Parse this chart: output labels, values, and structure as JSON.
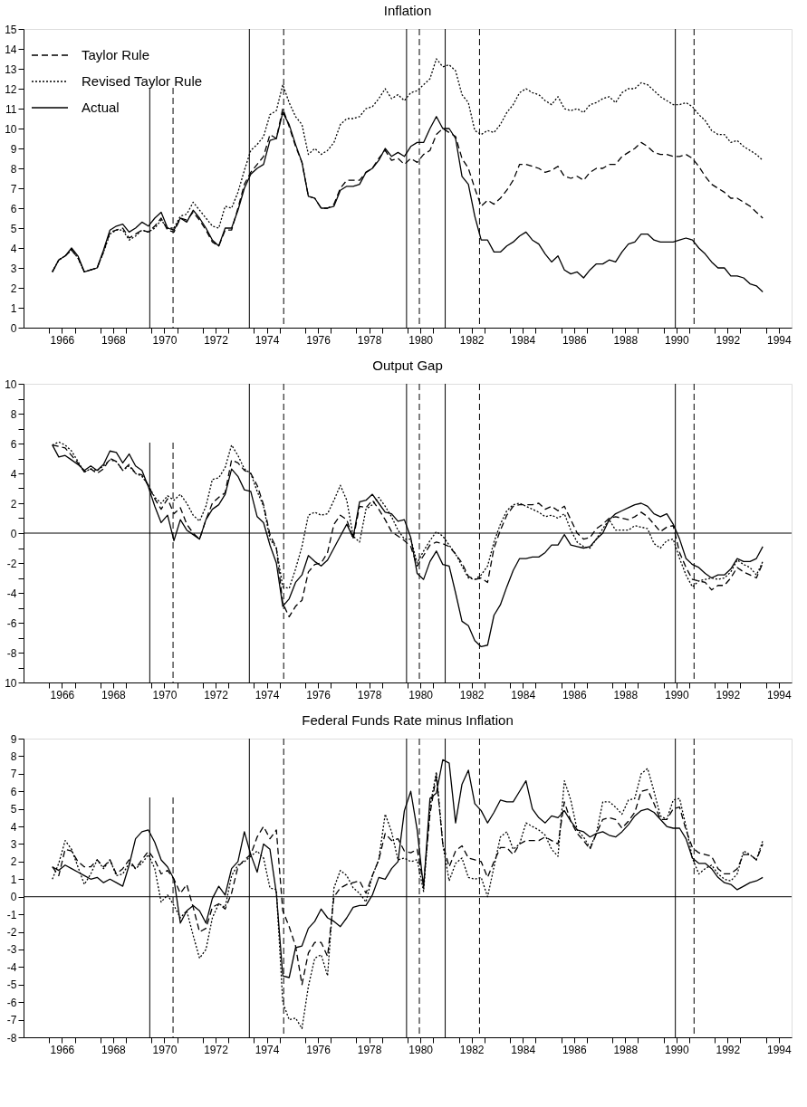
{
  "chart_data": [
    {
      "type": "line",
      "title": "Inflation",
      "legend": "top left",
      "xlim": [
        1965,
        1995
      ],
      "xticks": [
        {
          "value": 1966,
          "label": null
        },
        {
          "value": 1967,
          "label": null
        },
        {
          "value": 1968,
          "label": null
        },
        {
          "value": 1969,
          "label": null
        },
        {
          "value": 1970,
          "label": null
        },
        {
          "value": 1971,
          "label": null
        },
        {
          "value": 1972,
          "label": null
        },
        {
          "value": 1973,
          "label": null
        },
        {
          "value": 1974,
          "label": null
        },
        {
          "value": 1975,
          "label": null
        },
        {
          "value": 1976,
          "label": null
        },
        {
          "value": 1977,
          "label": null
        },
        {
          "value": 1978,
          "label": null
        },
        {
          "value": 1979,
          "label": null
        },
        {
          "value": 1980,
          "label": null
        },
        {
          "value": 1981,
          "label": null
        },
        {
          "value": 1982,
          "label": null
        },
        {
          "value": 1983,
          "label": null
        },
        {
          "value": 1984,
          "label": null
        },
        {
          "value": 1985,
          "label": null
        },
        {
          "value": 1986,
          "label": null
        },
        {
          "value": 1987,
          "label": null
        },
        {
          "value": 1988,
          "label": null
        },
        {
          "value": 1989,
          "label": null
        },
        {
          "value": 1990,
          "label": null
        },
        {
          "value": 1991,
          "label": null
        },
        {
          "value": 1992,
          "label": null
        },
        {
          "value": 1993,
          "label": null
        },
        {
          "value": 1994,
          "label": null
        },
        {
          "value": 1966.5,
          "label": "1966"
        },
        {
          "value": 1968.5,
          "label": "1968"
        },
        {
          "value": 1970.5,
          "label": "1970"
        },
        {
          "value": 1972.5,
          "label": "1972"
        },
        {
          "value": 1974.5,
          "label": "1974"
        },
        {
          "value": 1976.5,
          "label": "1976"
        },
        {
          "value": 1978.5,
          "label": "1978"
        },
        {
          "value": 1980.5,
          "label": "1980"
        },
        {
          "value": 1982.5,
          "label": "1982"
        },
        {
          "value": 1984.5,
          "label": "1984"
        },
        {
          "value": 1986.5,
          "label": "1986"
        },
        {
          "value": 1988.5,
          "label": "1988"
        },
        {
          "value": 1990.5,
          "label": "1990"
        },
        {
          "value": 1992.5,
          "label": "1992"
        },
        {
          "value": 1994.5,
          "label": "1994"
        }
      ],
      "ylim": [
        0,
        15
      ],
      "yticks": [
        0,
        1,
        2,
        3,
        4,
        5,
        6,
        7,
        8,
        9,
        10,
        11,
        12,
        13,
        14,
        15
      ],
      "x": [
        1966.125,
        1966.375,
        1966.625,
        1966.875,
        1967.125,
        1967.375,
        1967.625,
        1967.875,
        1968.125,
        1968.375,
        1968.625,
        1968.875,
        1969.125,
        1969.375,
        1969.625,
        1969.875,
        1970.125,
        1970.375,
        1970.625,
        1970.875,
        1971.125,
        1971.375,
        1971.625,
        1971.875,
        1972.125,
        1972.375,
        1972.625,
        1972.875,
        1973.125,
        1973.375,
        1973.625,
        1973.875,
        1974.125,
        1974.375,
        1974.625,
        1974.875,
        1975.125,
        1975.375,
        1975.625,
        1975.875,
        1976.125,
        1976.375,
        1976.625,
        1976.875,
        1977.125,
        1977.375,
        1977.625,
        1977.875,
        1978.125,
        1978.375,
        1978.625,
        1978.875,
        1979.125,
        1979.375,
        1979.625,
        1979.875,
        1980.125,
        1980.375,
        1980.625,
        1980.875,
        1981.125,
        1981.375,
        1981.625,
        1981.875,
        1982.125,
        1982.375,
        1982.625,
        1982.875,
        1983.125,
        1983.375,
        1983.625,
        1983.875,
        1984.125,
        1984.375,
        1984.625,
        1984.875,
        1985.125,
        1985.375,
        1985.625,
        1985.875,
        1986.125,
        1986.375,
        1986.625,
        1986.875,
        1987.125,
        1987.375,
        1987.625,
        1987.875,
        1988.125,
        1988.375,
        1988.625,
        1988.875,
        1989.125,
        1989.375,
        1989.625,
        1989.875,
        1990.125,
        1990.375,
        1990.625,
        1990.875,
        1991.125,
        1991.375,
        1991.625,
        1991.875,
        1992.125,
        1992.375,
        1992.625,
        1992.875,
        1993.125,
        1993.375,
        1993.625,
        1993.875
      ],
      "series": [
        {
          "name": "Taylor Rule",
          "color": "#000000",
          "line_style": "dashed",
          "values": [
            2.8,
            3.4,
            3.6,
            3.9,
            3.5,
            2.8,
            2.9,
            3.0,
            3.8,
            4.8,
            4.9,
            5.0,
            4.5,
            4.7,
            4.9,
            4.8,
            5.1,
            5.5,
            4.9,
            4.8,
            5.5,
            5.4,
            5.8,
            5.4,
            4.9,
            4.3,
            4.1,
            4.9,
            4.9,
            6.0,
            7.2,
            7.8,
            8.2,
            8.6,
            9.7,
            9.5,
            11.0,
            10.1,
            9.1,
            8.3,
            6.6,
            6.5,
            6.0,
            6.0,
            6.2,
            7.0,
            7.4,
            7.4,
            7.4,
            7.8,
            8.0,
            8.5,
            8.9,
            8.4,
            8.5,
            8.2,
            8.5,
            8.3,
            8.7,
            8.9,
            9.7,
            10.0,
            9.8,
            9.6,
            8.5,
            8.0,
            7.0,
            6.1,
            6.4,
            6.2,
            6.5,
            6.9,
            7.4,
            8.2,
            8.2,
            8.1,
            8.0,
            7.8,
            7.9,
            8.1,
            7.6,
            7.5,
            7.6,
            7.4,
            7.8,
            8.0,
            8.0,
            8.2,
            8.2,
            8.6,
            8.8,
            9.0,
            9.3,
            9.1,
            8.8,
            8.7,
            8.7,
            8.6,
            8.6,
            8.7,
            8.5,
            8.1,
            7.6,
            7.2,
            7.0,
            6.8,
            6.5,
            6.5,
            6.3,
            6.1,
            5.8,
            5.5
          ]
        },
        {
          "name": "Revised Taylor Rule",
          "color": "#000000",
          "line_style": "dotted",
          "values": [
            2.8,
            3.4,
            3.6,
            3.9,
            3.5,
            2.8,
            2.9,
            3.0,
            3.8,
            4.7,
            4.9,
            4.9,
            4.4,
            4.6,
            4.9,
            4.8,
            5.0,
            5.4,
            5.0,
            5.0,
            5.6,
            5.7,
            6.3,
            5.9,
            5.5,
            5.1,
            5.0,
            6.1,
            6.0,
            6.8,
            7.9,
            8.9,
            9.2,
            9.6,
            10.7,
            10.9,
            12.2,
            11.3,
            10.6,
            10.2,
            8.7,
            9.0,
            8.7,
            8.9,
            9.3,
            10.2,
            10.5,
            10.5,
            10.6,
            11.0,
            11.1,
            11.5,
            12.0,
            11.5,
            11.7,
            11.4,
            11.8,
            11.9,
            12.2,
            12.5,
            13.5,
            13.1,
            13.2,
            12.9,
            11.7,
            11.3,
            9.9,
            9.7,
            9.9,
            9.8,
            10.2,
            10.8,
            11.2,
            11.8,
            12.0,
            11.8,
            11.7,
            11.4,
            11.2,
            11.6,
            11.0,
            10.9,
            11.0,
            10.8,
            11.2,
            11.3,
            11.5,
            11.6,
            11.3,
            11.8,
            12.0,
            12.0,
            12.3,
            12.2,
            11.9,
            11.6,
            11.4,
            11.2,
            11.2,
            11.3,
            11.1,
            10.7,
            10.4,
            9.9,
            9.7,
            9.7,
            9.3,
            9.4,
            9.1,
            8.9,
            8.7,
            8.4
          ]
        },
        {
          "name": "Actual",
          "color": "#000000",
          "line_style": "solid",
          "values": [
            2.8,
            3.4,
            3.6,
            4.0,
            3.6,
            2.8,
            2.9,
            3.0,
            3.9,
            4.9,
            5.1,
            5.2,
            4.8,
            5.0,
            5.3,
            5.1,
            5.5,
            5.8,
            5.0,
            4.9,
            5.5,
            5.3,
            5.9,
            5.5,
            5.0,
            4.4,
            4.1,
            5.0,
            5.0,
            5.9,
            7.0,
            7.7,
            8.0,
            8.2,
            9.4,
            9.5,
            10.8,
            10.2,
            9.2,
            8.3,
            6.6,
            6.5,
            6.0,
            6.0,
            6.1,
            6.9,
            7.1,
            7.1,
            7.2,
            7.8,
            8.0,
            8.4,
            9.0,
            8.6,
            8.8,
            8.6,
            9.1,
            9.3,
            9.3,
            10.0,
            10.6,
            10.0,
            10.0,
            9.5,
            7.6,
            7.2,
            5.6,
            4.4,
            4.4,
            3.8,
            3.8,
            4.1,
            4.3,
            4.6,
            4.8,
            4.4,
            4.2,
            3.7,
            3.3,
            3.6,
            2.9,
            2.7,
            2.8,
            2.5,
            2.9,
            3.2,
            3.2,
            3.4,
            3.3,
            3.8,
            4.2,
            4.3,
            4.7,
            4.7,
            4.4,
            4.3,
            4.3,
            4.3,
            4.4,
            4.5,
            4.4,
            4.0,
            3.7,
            3.3,
            3.0,
            3.0,
            2.6,
            2.6,
            2.5,
            2.2,
            2.1,
            1.8
          ]
        }
      ],
      "ref_lines": [
        {
          "axis": "x",
          "value": 1969.93,
          "line_style": "solid"
        },
        {
          "axis": "x",
          "value": 1970.84,
          "line_style": "dashed"
        },
        {
          "axis": "x",
          "value": 1973.82,
          "line_style": "solid"
        },
        {
          "axis": "x",
          "value": 1975.16,
          "line_style": "dashed"
        },
        {
          "axis": "x",
          "value": 1979.96,
          "line_style": "solid"
        },
        {
          "axis": "x",
          "value": 1980.46,
          "line_style": "dashed"
        },
        {
          "axis": "x",
          "value": 1981.47,
          "line_style": "solid"
        },
        {
          "axis": "x",
          "value": 1982.81,
          "line_style": "dashed"
        },
        {
          "axis": "x",
          "value": 1990.46,
          "line_style": "solid"
        },
        {
          "axis": "x",
          "value": 1991.19,
          "line_style": "dashed"
        }
      ]
    },
    {
      "type": "line",
      "title": "Output Gap",
      "legend": "top left",
      "xlim": [
        1965,
        1995
      ],
      "xticks": [
        {
          "value": 1966,
          "label": null
        },
        {
          "value": 1967,
          "label": null
        },
        {
          "value": 1968,
          "label": null
        },
        {
          "value": 1969,
          "label": null
        },
        {
          "value": 1970,
          "label": null
        },
        {
          "value": 1971,
          "label": null
        },
        {
          "value": 1972,
          "label": null
        },
        {
          "value": 1973,
          "label": null
        },
        {
          "value": 1974,
          "label": null
        },
        {
          "value": 1975,
          "label": null
        },
        {
          "value": 1976,
          "label": null
        },
        {
          "value": 1977,
          "label": null
        },
        {
          "value": 1978,
          "label": null
        },
        {
          "value": 1979,
          "label": null
        },
        {
          "value": 1980,
          "label": null
        },
        {
          "value": 1981,
          "label": null
        },
        {
          "value": 1982,
          "label": null
        },
        {
          "value": 1983,
          "label": null
        },
        {
          "value": 1984,
          "label": null
        },
        {
          "value": 1985,
          "label": null
        },
        {
          "value": 1986,
          "label": null
        },
        {
          "value": 1987,
          "label": null
        },
        {
          "value": 1988,
          "label": null
        },
        {
          "value": 1989,
          "label": null
        },
        {
          "value": 1990,
          "label": null
        },
        {
          "value": 1991,
          "label": null
        },
        {
          "value": 1992,
          "label": null
        },
        {
          "value": 1993,
          "label": null
        },
        {
          "value": 1994,
          "label": null
        },
        {
          "value": 1966.5,
          "label": "1966"
        },
        {
          "value": 1968.5,
          "label": "1968"
        },
        {
          "value": 1970.5,
          "label": "1970"
        },
        {
          "value": 1972.5,
          "label": "1972"
        },
        {
          "value": 1974.5,
          "label": "1974"
        },
        {
          "value": 1976.5,
          "label": "1976"
        },
        {
          "value": 1978.5,
          "label": "1978"
        },
        {
          "value": 1980.5,
          "label": "1980"
        },
        {
          "value": 1982.5,
          "label": "1982"
        },
        {
          "value": 1984.5,
          "label": "1984"
        },
        {
          "value": 1986.5,
          "label": "1986"
        },
        {
          "value": 1988.5,
          "label": "1988"
        },
        {
          "value": 1990.5,
          "label": "1990"
        },
        {
          "value": 1992.5,
          "label": "1992"
        },
        {
          "value": 1994.5,
          "label": "1994"
        }
      ],
      "ylim": [
        -10,
        10
      ],
      "yticks": [
        {
          "value": -10,
          "label": "10"
        },
        {
          "value": -9,
          "label": null
        },
        -8,
        {
          "value": -7,
          "label": null
        },
        -6,
        {
          "value": -5,
          "label": null
        },
        -4,
        {
          "value": -3,
          "label": null
        },
        -2,
        {
          "value": -1,
          "label": null
        },
        0,
        {
          "value": 1,
          "label": null
        },
        2,
        {
          "value": 3,
          "label": null
        },
        4,
        {
          "value": 5,
          "label": null
        },
        6,
        {
          "value": 7,
          "label": null
        },
        8,
        {
          "value": 9,
          "label": null
        },
        10
      ],
      "x": [
        1966.125,
        1966.375,
        1966.625,
        1966.875,
        1967.125,
        1967.375,
        1967.625,
        1967.875,
        1968.125,
        1968.375,
        1968.625,
        1968.875,
        1969.125,
        1969.375,
        1969.625,
        1969.875,
        1970.125,
        1970.375,
        1970.625,
        1970.875,
        1971.125,
        1971.375,
        1971.625,
        1971.875,
        1972.125,
        1972.375,
        1972.625,
        1972.875,
        1973.125,
        1973.375,
        1973.625,
        1973.875,
        1974.125,
        1974.375,
        1974.625,
        1974.875,
        1975.125,
        1975.375,
        1975.625,
        1975.875,
        1976.125,
        1976.375,
        1976.625,
        1976.875,
        1977.125,
        1977.375,
        1977.625,
        1977.875,
        1978.125,
        1978.375,
        1978.625,
        1978.875,
        1979.125,
        1979.375,
        1979.625,
        1979.875,
        1980.125,
        1980.375,
        1980.625,
        1980.875,
        1981.125,
        1981.375,
        1981.625,
        1981.875,
        1982.125,
        1982.375,
        1982.625,
        1982.875,
        1983.125,
        1983.375,
        1983.625,
        1983.875,
        1984.125,
        1984.375,
        1984.625,
        1984.875,
        1985.125,
        1985.375,
        1985.625,
        1985.875,
        1986.125,
        1986.375,
        1986.625,
        1986.875,
        1987.125,
        1987.375,
        1987.625,
        1987.875,
        1988.125,
        1988.375,
        1988.625,
        1988.875,
        1989.125,
        1989.375,
        1989.625,
        1989.875,
        1990.125,
        1990.375,
        1990.625,
        1990.875,
        1991.125,
        1991.375,
        1991.625,
        1991.875,
        1992.125,
        1992.375,
        1992.625,
        1992.875,
        1993.125,
        1993.375,
        1993.625,
        1993.875
      ],
      "series": [
        {
          "name": "Taylor Rule",
          "color": "#000000",
          "line_style": "dashed",
          "values": [
            5.9,
            5.8,
            5.7,
            5.2,
            4.7,
            4.1,
            4.3,
            4.0,
            4.3,
            5.0,
            4.8,
            4.2,
            4.6,
            4.0,
            3.9,
            3.2,
            2.3,
            1.6,
            2.3,
            1.3,
            1.7,
            0.6,
            0.0,
            -0.4,
            0.9,
            2.0,
            2.4,
            2.7,
            4.9,
            4.7,
            4.2,
            4.0,
            3.2,
            1.9,
            -0.1,
            -1.0,
            -4.7,
            -5.6,
            -4.9,
            -4.5,
            -2.6,
            -2.1,
            -2.0,
            -1.3,
            0.6,
            1.2,
            0.9,
            -0.4,
            1.8,
            1.7,
            2.2,
            1.6,
            0.9,
            0.1,
            -0.2,
            -0.5,
            -0.9,
            -2.2,
            -1.5,
            -0.8,
            -0.6,
            -0.7,
            -0.9,
            -1.4,
            -2.0,
            -2.9,
            -3.1,
            -3.0,
            -3.3,
            -1.0,
            0.2,
            1.2,
            1.8,
            1.9,
            1.9,
            1.9,
            2.0,
            1.6,
            1.8,
            1.5,
            1.8,
            0.9,
            0.0,
            -0.4,
            -0.3,
            0.3,
            0.6,
            1.0,
            1.1,
            1.0,
            0.9,
            1.1,
            1.4,
            1.1,
            0.6,
            0.1,
            0.4,
            0.5,
            -1.3,
            -2.3,
            -3.1,
            -3.2,
            -3.3,
            -3.8,
            -3.5,
            -3.5,
            -3.0,
            -2.3,
            -2.6,
            -2.8,
            -3.0,
            -2.0
          ]
        },
        {
          "name": "Revised Taylor Rule",
          "color": "#000000",
          "line_style": "dotted",
          "values": [
            5.9,
            6.1,
            5.9,
            5.5,
            4.8,
            4.1,
            4.3,
            4.2,
            4.5,
            4.9,
            4.8,
            4.2,
            4.5,
            4.0,
            3.8,
            3.2,
            2.4,
            2.0,
            2.5,
            2.2,
            2.6,
            2.0,
            1.2,
            0.8,
            1.8,
            3.6,
            3.7,
            4.4,
            5.9,
            5.2,
            4.3,
            4.0,
            2.8,
            1.8,
            -0.4,
            -1.0,
            -3.6,
            -3.7,
            -2.4,
            -0.9,
            1.2,
            1.4,
            1.2,
            1.3,
            2.2,
            3.2,
            2.2,
            -0.2,
            -0.6,
            1.6,
            1.9,
            2.4,
            1.8,
            1.1,
            0.2,
            -0.4,
            -0.4,
            -2.0,
            -1.2,
            -0.5,
            0.1,
            -0.2,
            -0.8,
            -1.4,
            -2.2,
            -3.0,
            -3.1,
            -2.8,
            -2.2,
            -0.6,
            0.6,
            1.5,
            1.9,
            2.0,
            1.8,
            1.6,
            1.4,
            1.1,
            1.2,
            1.0,
            1.3,
            0.2,
            -0.6,
            -0.9,
            -1.0,
            -0.4,
            0.3,
            0.9,
            0.2,
            0.2,
            0.2,
            0.5,
            0.4,
            0.3,
            -0.7,
            -1.0,
            -0.5,
            -0.4,
            -1.7,
            -2.8,
            -3.6,
            -3.2,
            -3.1,
            -3.0,
            -3.1,
            -3.0,
            -2.6,
            -1.8,
            -2.1,
            -2.3,
            -2.8,
            -1.9
          ]
        },
        {
          "name": "Actual",
          "color": "#000000",
          "line_style": "solid",
          "values": [
            5.9,
            5.1,
            5.2,
            4.9,
            4.6,
            4.2,
            4.5,
            4.2,
            4.6,
            5.5,
            5.4,
            4.7,
            5.3,
            4.5,
            4.2,
            3.1,
            1.8,
            0.7,
            1.2,
            -0.5,
            0.9,
            0.2,
            -0.1,
            -0.4,
            0.9,
            1.6,
            1.9,
            2.6,
            4.3,
            3.8,
            2.9,
            2.8,
            1.1,
            0.7,
            -0.8,
            -2.0,
            -4.9,
            -4.4,
            -3.3,
            -2.8,
            -1.5,
            -1.9,
            -2.2,
            -1.8,
            -1.0,
            -0.2,
            0.6,
            -0.3,
            2.1,
            2.2,
            2.6,
            2.0,
            1.4,
            1.3,
            0.8,
            0.9,
            -0.3,
            -2.7,
            -3.1,
            -1.9,
            -1.2,
            -2.1,
            -2.2,
            -4.0,
            -5.9,
            -6.2,
            -7.2,
            -7.6,
            -7.5,
            -5.5,
            -4.8,
            -3.6,
            -2.5,
            -1.7,
            -1.7,
            -1.6,
            -1.6,
            -1.3,
            -0.8,
            -0.8,
            -0.1,
            -0.8,
            -0.9,
            -1.0,
            -0.9,
            -0.4,
            0.0,
            0.9,
            1.3,
            1.5,
            1.7,
            1.9,
            2.0,
            1.8,
            1.3,
            1.1,
            1.3,
            0.6,
            -0.4,
            -1.7,
            -2.1,
            -2.3,
            -2.7,
            -3.0,
            -2.8,
            -2.8,
            -2.4,
            -1.7,
            -1.9,
            -1.9,
            -1.7,
            -0.9
          ]
        }
      ],
      "ref_lines": [
        {
          "axis": "y",
          "value": 0,
          "line_style": "solid"
        },
        {
          "axis": "x",
          "value": 1969.93,
          "line_style": "solid"
        },
        {
          "axis": "x",
          "value": 1970.84,
          "line_style": "dashed"
        },
        {
          "axis": "x",
          "value": 1973.82,
          "line_style": "solid"
        },
        {
          "axis": "x",
          "value": 1975.16,
          "line_style": "dashed"
        },
        {
          "axis": "x",
          "value": 1979.96,
          "line_style": "solid"
        },
        {
          "axis": "x",
          "value": 1980.46,
          "line_style": "dashed"
        },
        {
          "axis": "x",
          "value": 1981.47,
          "line_style": "solid"
        },
        {
          "axis": "x",
          "value": 1982.81,
          "line_style": "dashed"
        },
        {
          "axis": "x",
          "value": 1990.46,
          "line_style": "solid"
        },
        {
          "axis": "x",
          "value": 1991.19,
          "line_style": "dashed"
        }
      ]
    },
    {
      "type": "line",
      "title": "Federal Funds Rate minus Inflation",
      "legend": "top left",
      "xlim": [
        1965,
        1995
      ],
      "xticks": [
        {
          "value": 1966,
          "label": null
        },
        {
          "value": 1967,
          "label": null
        },
        {
          "value": 1968,
          "label": null
        },
        {
          "value": 1969,
          "label": null
        },
        {
          "value": 1970,
          "label": null
        },
        {
          "value": 1971,
          "label": null
        },
        {
          "value": 1972,
          "label": null
        },
        {
          "value": 1973,
          "label": null
        },
        {
          "value": 1974,
          "label": null
        },
        {
          "value": 1975,
          "label": null
        },
        {
          "value": 1976,
          "label": null
        },
        {
          "value": 1977,
          "label": null
        },
        {
          "value": 1978,
          "label": null
        },
        {
          "value": 1979,
          "label": null
        },
        {
          "value": 1980,
          "label": null
        },
        {
          "value": 1981,
          "label": null
        },
        {
          "value": 1982,
          "label": null
        },
        {
          "value": 1983,
          "label": null
        },
        {
          "value": 1984,
          "label": null
        },
        {
          "value": 1985,
          "label": null
        },
        {
          "value": 1986,
          "label": null
        },
        {
          "value": 1987,
          "label": null
        },
        {
          "value": 1988,
          "label": null
        },
        {
          "value": 1989,
          "label": null
        },
        {
          "value": 1990,
          "label": null
        },
        {
          "value": 1991,
          "label": null
        },
        {
          "value": 1992,
          "label": null
        },
        {
          "value": 1993,
          "label": null
        },
        {
          "value": 1994,
          "label": null
        },
        {
          "value": 1966.5,
          "label": "1966"
        },
        {
          "value": 1968.5,
          "label": "1968"
        },
        {
          "value": 1970.5,
          "label": "1970"
        },
        {
          "value": 1972.5,
          "label": "1972"
        },
        {
          "value": 1974.5,
          "label": "1974"
        },
        {
          "value": 1976.5,
          "label": "1976"
        },
        {
          "value": 1978.5,
          "label": "1978"
        },
        {
          "value": 1980.5,
          "label": "1980"
        },
        {
          "value": 1982.5,
          "label": "1982"
        },
        {
          "value": 1984.5,
          "label": "1984"
        },
        {
          "value": 1986.5,
          "label": "1986"
        },
        {
          "value": 1988.5,
          "label": "1988"
        },
        {
          "value": 1990.5,
          "label": "1990"
        },
        {
          "value": 1992.5,
          "label": "1992"
        },
        {
          "value": 1994.5,
          "label": "1994"
        }
      ],
      "ylim": [
        -8,
        9
      ],
      "yticks": [
        -8,
        -7,
        -6,
        -5,
        -4,
        -3,
        -2,
        -1,
        0,
        1,
        2,
        3,
        4,
        5,
        6,
        7,
        8,
        9
      ],
      "x": [
        1966.125,
        1966.375,
        1966.625,
        1966.875,
        1967.125,
        1967.375,
        1967.625,
        1967.875,
        1968.125,
        1968.375,
        1968.625,
        1968.875,
        1969.125,
        1969.375,
        1969.625,
        1969.875,
        1970.125,
        1970.375,
        1970.625,
        1970.875,
        1971.125,
        1971.375,
        1971.625,
        1971.875,
        1972.125,
        1972.375,
        1972.625,
        1972.875,
        1973.125,
        1973.375,
        1973.625,
        1973.875,
        1974.125,
        1974.375,
        1974.625,
        1974.875,
        1975.125,
        1975.375,
        1975.625,
        1975.875,
        1976.125,
        1976.375,
        1976.625,
        1976.875,
        1977.125,
        1977.375,
        1977.625,
        1977.875,
        1978.125,
        1978.375,
        1978.625,
        1978.875,
        1979.125,
        1979.375,
        1979.625,
        1979.875,
        1980.125,
        1980.375,
        1980.625,
        1980.875,
        1981.125,
        1981.375,
        1981.625,
        1981.875,
        1982.125,
        1982.375,
        1982.625,
        1982.875,
        1983.125,
        1983.375,
        1983.625,
        1983.875,
        1984.125,
        1984.375,
        1984.625,
        1984.875,
        1985.125,
        1985.375,
        1985.625,
        1985.875,
        1986.125,
        1986.375,
        1986.625,
        1986.875,
        1987.125,
        1987.375,
        1987.625,
        1987.875,
        1988.125,
        1988.375,
        1988.625,
        1988.875,
        1989.125,
        1989.375,
        1989.625,
        1989.875,
        1990.125,
        1990.375,
        1990.625,
        1990.875,
        1991.125,
        1991.375,
        1991.625,
        1991.875,
        1992.125,
        1992.375,
        1992.625,
        1992.875,
        1993.125,
        1993.375,
        1993.625,
        1993.875
      ],
      "series": [
        {
          "name": "Taylor Rule",
          "color": "#000000",
          "line_style": "dashed",
          "values": [
            1.7,
            1.2,
            2.7,
            2.6,
            2.0,
            1.7,
            1.7,
            2.1,
            1.7,
            2.1,
            1.3,
            1.6,
            2.1,
            1.6,
            2.1,
            2.6,
            2.1,
            1.3,
            1.5,
            1.0,
            0.2,
            0.7,
            -0.6,
            -2.0,
            -1.8,
            -0.6,
            -0.4,
            -0.7,
            0.2,
            1.7,
            2.1,
            2.4,
            3.4,
            4.0,
            3.3,
            3.8,
            -0.8,
            -1.7,
            -2.8,
            -5.0,
            -3.2,
            -2.6,
            -2.6,
            -3.4,
            0.0,
            0.5,
            0.7,
            0.8,
            0.9,
            0.2,
            1.2,
            2.1,
            3.6,
            3.2,
            3.3,
            2.6,
            2.5,
            2.7,
            0.7,
            4.7,
            6.9,
            3.0,
            1.7,
            2.6,
            2.9,
            2.2,
            2.1,
            2.0,
            1.1,
            2.0,
            2.8,
            2.8,
            2.4,
            3.0,
            3.2,
            3.2,
            3.2,
            3.4,
            3.2,
            3.0,
            5.4,
            4.3,
            3.6,
            3.2,
            2.7,
            3.6,
            4.4,
            4.5,
            4.4,
            3.9,
            4.3,
            4.8,
            6.0,
            6.1,
            5.3,
            4.4,
            4.4,
            5.0,
            5.1,
            3.8,
            2.8,
            2.5,
            2.4,
            2.3,
            1.6,
            1.3,
            1.3,
            1.6,
            2.4,
            2.4,
            2.1,
            3.0
          ]
        },
        {
          "name": "Revised Taylor Rule",
          "color": "#000000",
          "line_style": "dotted",
          "values": [
            1.0,
            1.9,
            3.2,
            2.7,
            1.7,
            0.7,
            1.3,
            2.1,
            1.6,
            2.1,
            1.2,
            1.3,
            1.9,
            1.6,
            1.9,
            2.4,
            1.6,
            -0.3,
            0.1,
            -0.5,
            -1.2,
            -0.8,
            -2.2,
            -3.5,
            -3.0,
            -1.2,
            -0.4,
            -0.6,
            1.2,
            1.8,
            2.0,
            2.3,
            2.6,
            2.2,
            0.5,
            0.4,
            -6.0,
            -7.0,
            -6.9,
            -7.5,
            -5.1,
            -3.5,
            -3.3,
            -4.5,
            0.5,
            1.5,
            1.2,
            0.5,
            0.2,
            -0.3,
            1.2,
            2.1,
            4.7,
            3.7,
            2.1,
            2.2,
            2.0,
            2.1,
            0.3,
            5.1,
            7.1,
            3.0,
            0.9,
            1.9,
            2.2,
            1.1,
            1.0,
            1.1,
            0.0,
            1.7,
            3.4,
            3.7,
            2.7,
            3.0,
            4.2,
            4.0,
            3.8,
            3.5,
            2.7,
            2.3,
            6.6,
            5.5,
            3.8,
            3.4,
            2.8,
            3.6,
            5.4,
            5.4,
            5.1,
            4.7,
            5.5,
            5.6,
            7.0,
            7.3,
            6.0,
            4.6,
            4.4,
            5.5,
            5.6,
            4.0,
            2.2,
            1.3,
            1.6,
            1.8,
            1.3,
            1.0,
            0.9,
            1.3,
            2.6,
            2.4,
            2.1,
            3.2
          ]
        },
        {
          "name": "Actual",
          "color": "#000000",
          "line_style": "solid",
          "values": [
            1.7,
            1.5,
            1.8,
            1.6,
            1.4,
            1.2,
            1.0,
            1.1,
            0.8,
            1.0,
            0.8,
            0.6,
            1.8,
            3.3,
            3.7,
            3.8,
            3.1,
            2.1,
            1.7,
            1.0,
            -1.5,
            -0.8,
            -0.5,
            -0.8,
            -1.5,
            -0.1,
            0.6,
            0.1,
            1.6,
            2.0,
            3.7,
            2.4,
            1.4,
            3.0,
            2.7,
            0.2,
            -4.5,
            -4.6,
            -2.9,
            -2.8,
            -1.8,
            -1.4,
            -0.7,
            -1.2,
            -1.4,
            -1.7,
            -1.2,
            -0.6,
            -0.5,
            -0.5,
            0.1,
            1.1,
            1.0,
            1.6,
            2.0,
            4.9,
            6.0,
            3.8,
            0.5,
            5.6,
            5.9,
            7.8,
            7.6,
            4.2,
            6.4,
            7.2,
            5.3,
            4.9,
            4.2,
            4.8,
            5.5,
            5.4,
            5.4,
            6.0,
            6.6,
            5.0,
            4.5,
            4.2,
            4.6,
            4.5,
            4.9,
            4.3,
            3.8,
            3.7,
            3.4,
            3.6,
            3.7,
            3.5,
            3.4,
            3.7,
            4.1,
            4.6,
            4.9,
            5.0,
            4.8,
            4.4,
            4.0,
            3.9,
            3.9,
            3.3,
            2.2,
            1.9,
            1.9,
            1.6,
            1.1,
            0.8,
            0.7,
            0.4,
            0.6,
            0.8,
            0.9,
            1.1
          ]
        }
      ],
      "ref_lines": [
        {
          "axis": "y",
          "value": 0,
          "line_style": "solid"
        },
        {
          "axis": "x",
          "value": 1969.93,
          "line_style": "solid"
        },
        {
          "axis": "x",
          "value": 1970.84,
          "line_style": "dashed"
        },
        {
          "axis": "x",
          "value": 1973.82,
          "line_style": "solid"
        },
        {
          "axis": "x",
          "value": 1975.16,
          "line_style": "dashed"
        },
        {
          "axis": "x",
          "value": 1979.96,
          "line_style": "solid"
        },
        {
          "axis": "x",
          "value": 1980.46,
          "line_style": "dashed"
        },
        {
          "axis": "x",
          "value": 1981.47,
          "line_style": "solid"
        },
        {
          "axis": "x",
          "value": 1982.81,
          "line_style": "dashed"
        },
        {
          "axis": "x",
          "value": 1990.46,
          "line_style": "solid"
        },
        {
          "axis": "x",
          "value": 1991.19,
          "line_style": "dashed"
        }
      ]
    }
  ]
}
